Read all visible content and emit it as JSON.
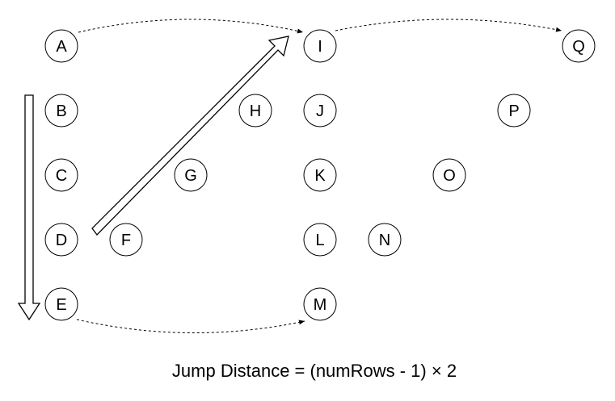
{
  "nodes": [
    {
      "id": "A",
      "label": "A"
    },
    {
      "id": "B",
      "label": "B"
    },
    {
      "id": "C",
      "label": "C"
    },
    {
      "id": "D",
      "label": "D"
    },
    {
      "id": "E",
      "label": "E"
    },
    {
      "id": "F",
      "label": "F"
    },
    {
      "id": "G",
      "label": "G"
    },
    {
      "id": "H",
      "label": "H"
    },
    {
      "id": "I",
      "label": "I"
    },
    {
      "id": "J",
      "label": "J"
    },
    {
      "id": "K",
      "label": "K"
    },
    {
      "id": "L",
      "label": "L"
    },
    {
      "id": "M",
      "label": "M"
    },
    {
      "id": "N",
      "label": "N"
    },
    {
      "id": "O",
      "label": "O"
    },
    {
      "id": "P",
      "label": "P"
    },
    {
      "id": "Q",
      "label": "Q"
    }
  ],
  "jump_edges": [
    {
      "from": "A",
      "to": "I"
    },
    {
      "from": "I",
      "to": "Q"
    },
    {
      "from": "E",
      "to": "M"
    }
  ],
  "formula": "Jump Distance = (numRows - 1) × 2"
}
